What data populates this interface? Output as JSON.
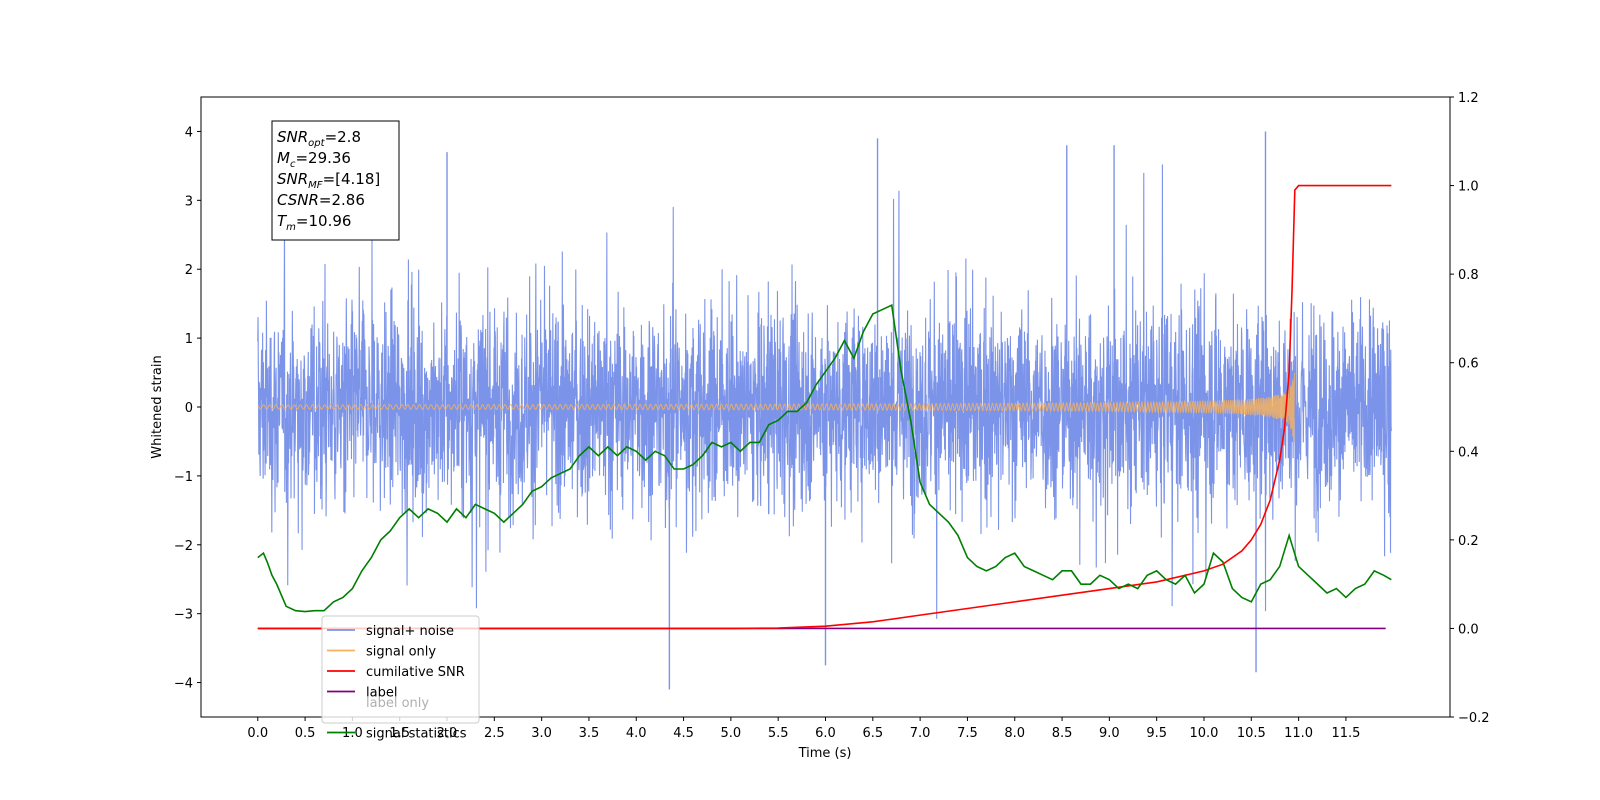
{
  "chart_data": {
    "type": "line",
    "xlabel": "Time (s)",
    "ylabel": "Whitened strain",
    "xlim": [
      -0.6,
      12.6
    ],
    "ylim": [
      -4.5,
      4.5
    ],
    "y2lim": [
      -0.2,
      1.2
    ],
    "x_ticks": [
      0.0,
      0.5,
      1.0,
      1.5,
      2.0,
      2.5,
      3.0,
      3.5,
      4.0,
      4.5,
      5.0,
      5.5,
      6.0,
      6.5,
      7.0,
      7.5,
      8.0,
      8.5,
      9.0,
      9.5,
      10.0,
      10.5,
      11.0,
      11.5
    ],
    "x_tick_labels": [
      "0.0",
      "0.5",
      "1.0",
      "1.5",
      "2.0",
      "2.5",
      "3.0",
      "3.5",
      "4.0",
      "4.5",
      "5.0",
      "5.5",
      "6.0",
      "6.5",
      "7.0",
      "7.5",
      "8.0",
      "8.5",
      "9.0",
      "9.5",
      "10.0",
      "10.5",
      "11.0",
      "11.5"
    ],
    "y_ticks": [
      -4,
      -3,
      -2,
      -1,
      0,
      1,
      2,
      3,
      4
    ],
    "y_tick_labels": [
      "−4",
      "−3",
      "−2",
      "−1",
      "0",
      "1",
      "2",
      "3",
      "4"
    ],
    "y2_ticks": [
      -0.2,
      0.0,
      0.2,
      0.4,
      0.6,
      0.8,
      1.0,
      1.2
    ],
    "y2_tick_labels": [
      "−0.2",
      "0.0",
      "0.2",
      "0.4",
      "0.6",
      "0.8",
      "1.0",
      "1.2"
    ],
    "legend_position": "lower-left",
    "grid": false,
    "series": [
      {
        "name": "signal+ noise",
        "axis": "left",
        "color": "#7b93e8",
        "kind": "noise",
        "x_range": [
          0.0,
          11.98
        ],
        "y_spread": [
          -4.1,
          4.0
        ],
        "notable_peaks": [
          [
            2.0,
            3.7
          ],
          [
            6.55,
            3.9
          ],
          [
            8.55,
            3.8
          ],
          [
            9.05,
            3.8
          ],
          [
            10.65,
            4.0
          ],
          [
            4.35,
            -4.1
          ],
          [
            10.55,
            -3.85
          ],
          [
            6.0,
            -3.75
          ]
        ]
      },
      {
        "name": "signal only",
        "axis": "left",
        "color": "#f5b060",
        "kind": "chirp",
        "x_range": [
          0.0,
          10.96
        ],
        "merger_time": 10.96,
        "peak_amplitude": 0.6
      },
      {
        "name": "cumilative SNR",
        "axis": "right",
        "color": "#ff0000",
        "x": [
          0.0,
          5.0,
          5.5,
          6.0,
          6.5,
          7.0,
          7.5,
          8.0,
          8.5,
          9.0,
          9.5,
          10.0,
          10.2,
          10.4,
          10.5,
          10.6,
          10.7,
          10.8,
          10.85,
          10.9,
          10.93,
          10.96,
          11.0,
          11.98
        ],
        "y": [
          0.0,
          0.0,
          0.001,
          0.005,
          0.015,
          0.03,
          0.045,
          0.06,
          0.075,
          0.09,
          0.105,
          0.13,
          0.145,
          0.175,
          0.2,
          0.235,
          0.29,
          0.38,
          0.45,
          0.58,
          0.76,
          0.99,
          1.0,
          1.0
        ]
      },
      {
        "name": "label",
        "axis": "right",
        "color": "#800080",
        "x": [
          0.0,
          11.92
        ],
        "y": [
          0.0,
          0.0
        ]
      },
      {
        "name": "label only",
        "axis": "right",
        "color": "#b0b0b0",
        "x": [],
        "y": []
      },
      {
        "name": "signal statistics",
        "axis": "right",
        "color": "#008000",
        "x": [
          0.0,
          0.06,
          0.1,
          0.15,
          0.2,
          0.3,
          0.4,
          0.5,
          0.6,
          0.7,
          0.8,
          0.9,
          1.0,
          1.1,
          1.2,
          1.3,
          1.4,
          1.5,
          1.6,
          1.7,
          1.8,
          1.9,
          2.0,
          2.1,
          2.2,
          2.3,
          2.4,
          2.5,
          2.6,
          2.7,
          2.8,
          2.9,
          3.0,
          3.05,
          3.1,
          3.2,
          3.3,
          3.4,
          3.5,
          3.6,
          3.7,
          3.8,
          3.9,
          4.0,
          4.1,
          4.2,
          4.3,
          4.4,
          4.5,
          4.6,
          4.7,
          4.8,
          4.9,
          5.0,
          5.1,
          5.2,
          5.3,
          5.4,
          5.5,
          5.6,
          5.7,
          5.8,
          5.9,
          6.0,
          6.1,
          6.2,
          6.3,
          6.4,
          6.5,
          6.6,
          6.7,
          6.8,
          6.9,
          7.0,
          7.1,
          7.2,
          7.3,
          7.4,
          7.5,
          7.6,
          7.7,
          7.8,
          7.9,
          8.0,
          8.1,
          8.2,
          8.3,
          8.4,
          8.5,
          8.6,
          8.7,
          8.8,
          8.9,
          9.0,
          9.1,
          9.2,
          9.3,
          9.4,
          9.5,
          9.6,
          9.7,
          9.8,
          9.9,
          10.0,
          10.1,
          10.2,
          10.3,
          10.4,
          10.5,
          10.6,
          10.7,
          10.8,
          10.9,
          11.0,
          11.1,
          11.2,
          11.3,
          11.4,
          11.5,
          11.6,
          11.7,
          11.8,
          11.9,
          11.98
        ],
        "y": [
          0.16,
          0.17,
          0.15,
          0.12,
          0.1,
          0.05,
          0.04,
          0.038,
          0.04,
          0.04,
          0.06,
          0.07,
          0.09,
          0.13,
          0.16,
          0.2,
          0.22,
          0.25,
          0.27,
          0.25,
          0.27,
          0.26,
          0.24,
          0.27,
          0.25,
          0.28,
          0.27,
          0.26,
          0.24,
          0.26,
          0.28,
          0.31,
          0.32,
          0.33,
          0.34,
          0.35,
          0.36,
          0.39,
          0.41,
          0.39,
          0.41,
          0.39,
          0.41,
          0.4,
          0.38,
          0.4,
          0.39,
          0.36,
          0.36,
          0.37,
          0.39,
          0.42,
          0.41,
          0.42,
          0.4,
          0.42,
          0.42,
          0.46,
          0.47,
          0.49,
          0.49,
          0.51,
          0.55,
          0.58,
          0.61,
          0.65,
          0.61,
          0.67,
          0.71,
          0.72,
          0.73,
          0.58,
          0.47,
          0.33,
          0.28,
          0.26,
          0.24,
          0.21,
          0.16,
          0.14,
          0.13,
          0.14,
          0.16,
          0.17,
          0.14,
          0.13,
          0.12,
          0.11,
          0.13,
          0.13,
          0.1,
          0.1,
          0.12,
          0.11,
          0.09,
          0.1,
          0.09,
          0.12,
          0.13,
          0.11,
          0.1,
          0.12,
          0.08,
          0.1,
          0.17,
          0.15,
          0.09,
          0.07,
          0.06,
          0.1,
          0.11,
          0.14,
          0.21,
          0.14,
          0.12,
          0.1,
          0.08,
          0.09,
          0.07,
          0.09,
          0.1,
          0.13,
          0.12,
          0.11
        ]
      }
    ],
    "annotation": {
      "lines": [
        {
          "base": "SNR",
          "sub": "opt",
          "rest": "=2.8"
        },
        {
          "base": "M",
          "sub": "c",
          "rest": "=29.36"
        },
        {
          "base": "SNR",
          "sub": "MF",
          "rest": "=[4.18]"
        },
        {
          "base": "CSNR",
          "sub": "",
          "rest": "=2.86"
        },
        {
          "base": "T",
          "sub": "m",
          "rest": "=10.96"
        }
      ]
    }
  }
}
